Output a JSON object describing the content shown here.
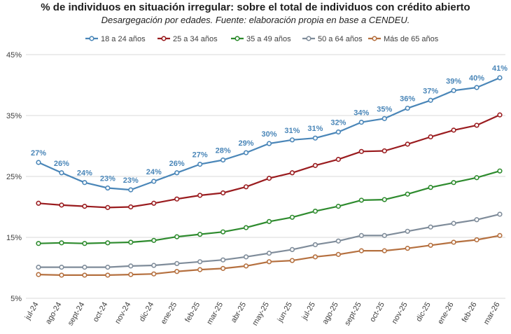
{
  "chart_data": {
    "type": "line",
    "title": "% de individuos  en situación irregular: sobre el total de individuos  con crédito abierto",
    "subtitle": "Desargegación por edades. Fuente: elaboración propia en base a CENDEU.",
    "categories": [
      "jul-24",
      "ago-24",
      "sept-24",
      "oct-24",
      "nov-24",
      "dic-24",
      "ene-25",
      "feb-25",
      "mar-25",
      "abr-25",
      "may-25",
      "jun-25",
      "jul-25",
      "ago-25",
      "sept-25",
      "oct-25",
      "nov-25",
      "dic-25",
      "ene-26",
      "feb-26",
      "mar-26"
    ],
    "y_ticks": [
      "45%",
      "35%",
      "25%",
      "15%",
      "5%"
    ],
    "ylim": [
      5,
      45
    ],
    "grid": "horizontal",
    "legend_position": "top",
    "series": [
      {
        "name": "18 a 24 años",
        "color": "#4a86b8",
        "values": [
          27.3,
          25.6,
          24.0,
          23.1,
          22.8,
          24.2,
          25.6,
          27.0,
          27.7,
          28.9,
          30.4,
          31.0,
          31.3,
          32.3,
          33.9,
          34.5,
          36.2,
          37.5,
          39.1,
          39.6,
          41.2
        ],
        "labels": [
          "27%",
          "26%",
          "24%",
          "23%",
          "23%",
          "24%",
          "26%",
          "27%",
          "28%",
          "29%",
          "30%",
          "31%",
          "31%",
          "32%",
          "34%",
          "35%",
          "36%",
          "37%",
          "39%",
          "40%",
          "41%"
        ]
      },
      {
        "name": "25 a 34 años",
        "color": "#9a1c1f",
        "values": [
          20.6,
          20.3,
          20.1,
          19.9,
          20.0,
          20.6,
          21.3,
          21.9,
          22.3,
          23.3,
          24.7,
          25.6,
          26.8,
          27.8,
          29.1,
          29.2,
          30.3,
          31.5,
          32.6,
          33.4,
          35.1
        ]
      },
      {
        "name": "35 a 49 años",
        "color": "#2e8b2e",
        "values": [
          14.0,
          14.1,
          14.0,
          14.1,
          14.2,
          14.5,
          15.1,
          15.5,
          15.9,
          16.6,
          17.6,
          18.3,
          19.3,
          20.1,
          21.1,
          21.2,
          22.1,
          23.2,
          24.0,
          24.8,
          25.9
        ]
      },
      {
        "name": "50 a 64 años",
        "color": "#7f8c9a",
        "values": [
          10.1,
          10.1,
          10.1,
          10.1,
          10.3,
          10.4,
          10.7,
          11.0,
          11.3,
          11.8,
          12.4,
          13.0,
          13.8,
          14.4,
          15.3,
          15.3,
          16.0,
          16.7,
          17.3,
          17.9,
          18.8
        ]
      },
      {
        "name": "Más de 65 años",
        "color": "#b5703f",
        "values": [
          8.9,
          8.8,
          8.8,
          8.8,
          8.9,
          9.0,
          9.4,
          9.7,
          9.9,
          10.3,
          11.0,
          11.2,
          11.8,
          12.2,
          12.8,
          12.8,
          13.2,
          13.7,
          14.2,
          14.6,
          15.3
        ]
      }
    ]
  }
}
